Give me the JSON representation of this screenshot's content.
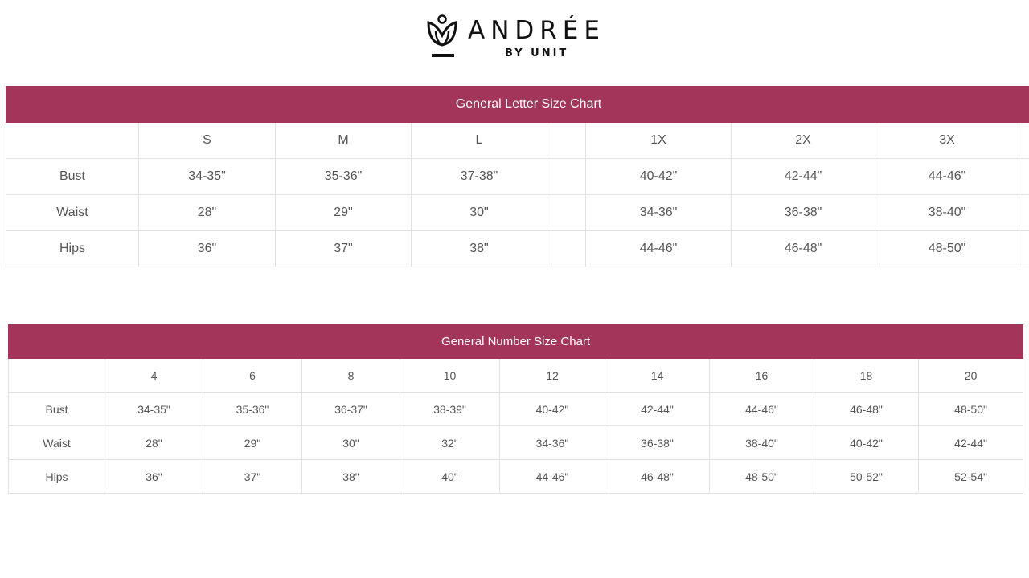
{
  "brand": {
    "name": "ANDRÉE",
    "sub": "BY UNIT"
  },
  "letter_chart": {
    "title": "General Letter Size Chart",
    "sizes": [
      "S",
      "M",
      "L",
      "",
      "1X",
      "2X",
      "3X",
      ""
    ],
    "rows": [
      {
        "label": "Bust",
        "values": [
          "34-35\"",
          "35-36\"",
          "37-38\"",
          "",
          "40-42\"",
          "42-44\"",
          "44-46\"",
          ""
        ]
      },
      {
        "label": "Waist",
        "values": [
          "28\"",
          "29\"",
          "30\"",
          "",
          "34-36\"",
          "36-38\"",
          "38-40\"",
          ""
        ]
      },
      {
        "label": "Hips",
        "values": [
          "36\"",
          "37\"",
          "38\"",
          "",
          "44-46\"",
          "46-48\"",
          "48-50\"",
          ""
        ]
      }
    ]
  },
  "number_chart": {
    "title": "General Number Size Chart",
    "sizes": [
      "4",
      "6",
      "8",
      "10",
      "12",
      "14",
      "16",
      "18",
      "20"
    ],
    "rows": [
      {
        "label": "Bust",
        "values": [
          "34-35\"",
          "35-36\"",
          "36-37\"",
          "38-39\"",
          "40-42\"",
          "42-44\"",
          "44-46\"",
          "46-48\"",
          "48-50\""
        ]
      },
      {
        "label": "Waist",
        "values": [
          "28\"",
          "29\"",
          "30\"",
          "32\"",
          "34-36\"",
          "36-38\"",
          "38-40\"",
          "40-42\"",
          "42-44\""
        ]
      },
      {
        "label": "Hips",
        "values": [
          "36\"",
          "37\"",
          "38\"",
          "40\"",
          "44-46\"",
          "46-48\"",
          "48-50\"",
          "50-52\"",
          "52-54\""
        ]
      }
    ]
  }
}
